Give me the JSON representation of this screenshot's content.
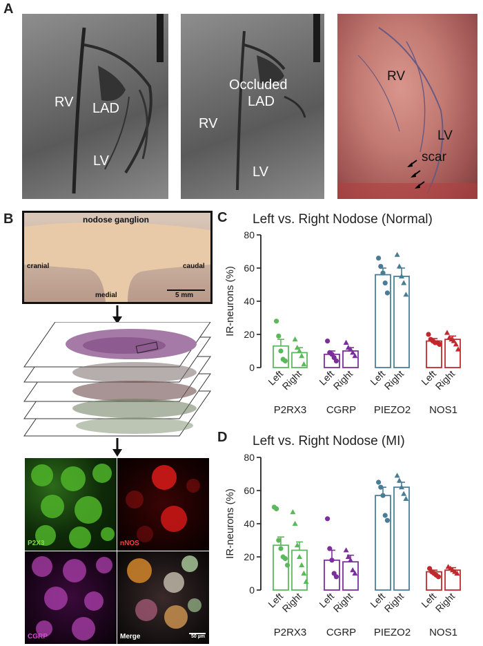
{
  "panels": {
    "a": "A",
    "b": "B",
    "c": "C",
    "d": "D"
  },
  "angio1": {
    "rv": "RV",
    "lad": "LAD",
    "lv": "LV"
  },
  "angio2": {
    "rv": "RV",
    "occluded": "Occluded",
    "lad": "LAD",
    "lv": "LV"
  },
  "heart": {
    "rv": "RV",
    "lv": "LV",
    "scar": "scar"
  },
  "ganglion": {
    "title": "nodose ganglion",
    "cranial": "cranial",
    "caudal": "caudal",
    "medial": "medial",
    "scale": "5 mm"
  },
  "micro": {
    "p2x3": "P2X3",
    "nnos": "nNOS",
    "cgrp": "CGRP",
    "merge": "Merge",
    "scale": "50 µm"
  },
  "colors": {
    "P2RX3": "#5cb85c",
    "CGRP": "#7a2f9a",
    "PIEZO2": "#4a7d95",
    "NOS1": "#c0282d"
  },
  "chart_data": [
    {
      "type": "bar",
      "title": "Left vs. Right Nodose (Normal)",
      "ylabel": "IR-neurons (%)",
      "ylim": [
        0,
        80
      ],
      "yticks": [
        0,
        20,
        40,
        60,
        80
      ],
      "groups": [
        "P2RX3",
        "CGRP",
        "PIEZO2",
        "NOS1"
      ],
      "sides": [
        "Left",
        "Right"
      ],
      "values": [
        13,
        9,
        8,
        10,
        56,
        55,
        16,
        17
      ],
      "errors": [
        4,
        3,
        2,
        2,
        4,
        5,
        1.5,
        2
      ],
      "points": [
        [
          28,
          19,
          10,
          5,
          4
        ],
        [
          17,
          12,
          10,
          7,
          2
        ],
        [
          16,
          9,
          8,
          6,
          4
        ],
        [
          15,
          12,
          11,
          9,
          7
        ],
        [
          66,
          61,
          57,
          51,
          45
        ],
        [
          68,
          61,
          55,
          51,
          44
        ],
        [
          20,
          17,
          16,
          15,
          15,
          14
        ],
        [
          21,
          18,
          17,
          16,
          14,
          11
        ]
      ]
    },
    {
      "type": "bar",
      "title": "Left vs. Right Nodose (MI)",
      "ylabel": "IR-neurons (%)",
      "ylim": [
        0,
        80
      ],
      "yticks": [
        0,
        20,
        40,
        60,
        80
      ],
      "groups": [
        "P2RX3",
        "CGRP",
        "PIEZO2",
        "NOS1"
      ],
      "sides": [
        "Left",
        "Right"
      ],
      "values": [
        27,
        24,
        18,
        17,
        57,
        62,
        11,
        12
      ],
      "errors": [
        5,
        5,
        6,
        4,
        5,
        3,
        1,
        1.5
      ],
      "points": [
        [
          50,
          49,
          30,
          25,
          20,
          19,
          15
        ],
        [
          47,
          40,
          27,
          20,
          15,
          10,
          5
        ],
        [
          43,
          25,
          18,
          10,
          8
        ],
        [
          24,
          20,
          18,
          12,
          10
        ],
        [
          65,
          62,
          57,
          45,
          42
        ],
        [
          69,
          66,
          62,
          58,
          55
        ],
        [
          13,
          11,
          10,
          9,
          8
        ],
        [
          14,
          13,
          12,
          11,
          10
        ]
      ]
    }
  ]
}
